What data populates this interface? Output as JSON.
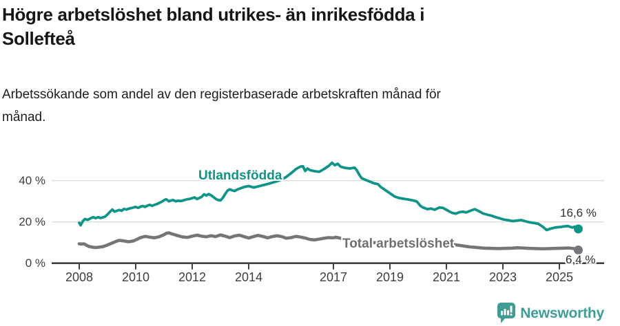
{
  "header": {
    "title_lines": [
      "Högre arbetslöshet bland utrikes- än inrikesfödda i",
      "Sollefteå"
    ],
    "subtitle_lines": [
      "Arbetssökande som andel av den registerbaserade arbetskraften månad för",
      "månad."
    ]
  },
  "chart_data": {
    "type": "line",
    "title": "Högre arbetslöshet bland utrikes- än inrikesfödda i Sollefteå",
    "subtitle": "Arbetssökande som andel av den registerbaserade arbetskraften månad för månad.",
    "unit": "%",
    "grid": "horizontal-only",
    "x_axis": {
      "ticks": [
        {
          "year": 2008,
          "label": "2008"
        },
        {
          "year": 2010,
          "label": "2010"
        },
        {
          "year": 2012,
          "label": "2012"
        },
        {
          "year": 2014,
          "label": "2014"
        },
        {
          "year": 2017,
          "label": "2017"
        },
        {
          "year": 2019,
          "label": "2019"
        },
        {
          "year": 2021,
          "label": "2021"
        },
        {
          "year": 2023,
          "label": "2023"
        },
        {
          "year": 2025,
          "label": "2025"
        }
      ],
      "range": [
        2007.0,
        2026.1
      ]
    },
    "y_axis": {
      "ticks": [
        {
          "value": 0,
          "label": "0 %"
        },
        {
          "value": 20,
          "label": "20 %"
        },
        {
          "value": 40,
          "label": "40 %"
        }
      ],
      "range": [
        0,
        52
      ]
    },
    "series": [
      {
        "name": "Utlandsfödda",
        "color": "#0E9488",
        "end_label": "16,6 %",
        "end_value": 16.6,
        "points": [
          [
            2008.0,
            19.6
          ],
          [
            2008.05,
            18.4
          ],
          [
            2008.13,
            20.4
          ],
          [
            2008.2,
            21.4
          ],
          [
            2008.3,
            21.0
          ],
          [
            2008.42,
            21.9
          ],
          [
            2008.5,
            22.3
          ],
          [
            2008.58,
            21.8
          ],
          [
            2008.67,
            22.3
          ],
          [
            2008.75,
            21.9
          ],
          [
            2008.83,
            22.2
          ],
          [
            2008.92,
            22.6
          ],
          [
            2009.0,
            23.6
          ],
          [
            2009.08,
            24.8
          ],
          [
            2009.17,
            26.0
          ],
          [
            2009.25,
            25.0
          ],
          [
            2009.33,
            25.4
          ],
          [
            2009.42,
            25.8
          ],
          [
            2009.5,
            25.4
          ],
          [
            2009.58,
            26.3
          ],
          [
            2009.67,
            26.0
          ],
          [
            2009.75,
            26.4
          ],
          [
            2009.83,
            26.7
          ],
          [
            2009.92,
            27.0
          ],
          [
            2010.0,
            27.3
          ],
          [
            2010.08,
            26.8
          ],
          [
            2010.17,
            27.4
          ],
          [
            2010.25,
            27.7
          ],
          [
            2010.33,
            27.3
          ],
          [
            2010.42,
            27.9
          ],
          [
            2010.5,
            28.3
          ],
          [
            2010.58,
            27.8
          ],
          [
            2010.67,
            28.3
          ],
          [
            2010.75,
            28.7
          ],
          [
            2010.83,
            29.2
          ],
          [
            2010.92,
            29.8
          ],
          [
            2011.0,
            30.5
          ],
          [
            2011.08,
            31.0
          ],
          [
            2011.17,
            30.0
          ],
          [
            2011.25,
            30.4
          ],
          [
            2011.33,
            30.6
          ],
          [
            2011.42,
            30.0
          ],
          [
            2011.5,
            30.3
          ],
          [
            2011.58,
            30.1
          ],
          [
            2011.67,
            30.4
          ],
          [
            2011.75,
            30.7
          ],
          [
            2011.83,
            31.0
          ],
          [
            2011.92,
            31.2
          ],
          [
            2012.0,
            31.5
          ],
          [
            2012.08,
            31.9
          ],
          [
            2012.17,
            31.1
          ],
          [
            2012.25,
            31.6
          ],
          [
            2012.33,
            32.1
          ],
          [
            2012.42,
            33.4
          ],
          [
            2012.5,
            32.8
          ],
          [
            2012.58,
            33.5
          ],
          [
            2012.67,
            32.9
          ],
          [
            2012.75,
            32.1
          ],
          [
            2012.83,
            31.2
          ],
          [
            2012.92,
            30.6
          ],
          [
            2013.0,
            30.4
          ],
          [
            2013.08,
            31.6
          ],
          [
            2013.17,
            33.6
          ],
          [
            2013.25,
            35.2
          ],
          [
            2013.33,
            35.8
          ],
          [
            2013.42,
            35.3
          ],
          [
            2013.5,
            35.0
          ],
          [
            2013.58,
            35.6
          ],
          [
            2013.67,
            36.1
          ],
          [
            2013.75,
            36.5
          ],
          [
            2013.83,
            36.9
          ],
          [
            2013.92,
            37.2
          ],
          [
            2014.0,
            37.4
          ],
          [
            2014.17,
            36.7
          ],
          [
            2014.33,
            37.2
          ],
          [
            2014.5,
            37.8
          ],
          [
            2014.67,
            38.4
          ],
          [
            2014.83,
            39.0
          ],
          [
            2015.0,
            39.7
          ],
          [
            2015.17,
            40.6
          ],
          [
            2015.33,
            41.8
          ],
          [
            2015.5,
            43.6
          ],
          [
            2015.67,
            45.6
          ],
          [
            2015.83,
            46.8
          ],
          [
            2015.92,
            47.0
          ],
          [
            2016.0,
            44.7
          ],
          [
            2016.08,
            45.9
          ],
          [
            2016.17,
            45.1
          ],
          [
            2016.33,
            44.6
          ],
          [
            2016.5,
            44.3
          ],
          [
            2016.67,
            45.7
          ],
          [
            2016.83,
            47.1
          ],
          [
            2016.95,
            48.7
          ],
          [
            2017.05,
            47.5
          ],
          [
            2017.15,
            48.2
          ],
          [
            2017.25,
            46.8
          ],
          [
            2017.42,
            46.2
          ],
          [
            2017.58,
            45.9
          ],
          [
            2017.75,
            46.3
          ],
          [
            2017.83,
            45.0
          ],
          [
            2017.92,
            42.8
          ],
          [
            2018.0,
            41.2
          ],
          [
            2018.17,
            40.2
          ],
          [
            2018.33,
            39.3
          ],
          [
            2018.42,
            38.8
          ],
          [
            2018.58,
            38.3
          ],
          [
            2018.67,
            37.0
          ],
          [
            2018.83,
            35.5
          ],
          [
            2019.0,
            33.9
          ],
          [
            2019.17,
            32.3
          ],
          [
            2019.33,
            31.6
          ],
          [
            2019.5,
            31.2
          ],
          [
            2019.67,
            30.8
          ],
          [
            2019.83,
            30.4
          ],
          [
            2019.95,
            29.9
          ],
          [
            2020.08,
            27.8
          ],
          [
            2020.17,
            27.0
          ],
          [
            2020.33,
            26.2
          ],
          [
            2020.45,
            26.5
          ],
          [
            2020.58,
            25.9
          ],
          [
            2020.75,
            27.0
          ],
          [
            2020.88,
            26.8
          ],
          [
            2021.05,
            25.5
          ],
          [
            2021.2,
            24.4
          ],
          [
            2021.33,
            24.0
          ],
          [
            2021.45,
            24.7
          ],
          [
            2021.58,
            25.0
          ],
          [
            2021.7,
            24.6
          ],
          [
            2021.85,
            25.4
          ],
          [
            2022.0,
            26.2
          ],
          [
            2022.15,
            25.2
          ],
          [
            2022.3,
            24.1
          ],
          [
            2022.45,
            23.5
          ],
          [
            2022.6,
            23.0
          ],
          [
            2022.75,
            22.3
          ],
          [
            2022.9,
            21.7
          ],
          [
            2023.05,
            21.1
          ],
          [
            2023.2,
            20.8
          ],
          [
            2023.35,
            20.4
          ],
          [
            2023.5,
            20.7
          ],
          [
            2023.65,
            20.9
          ],
          [
            2023.8,
            20.3
          ],
          [
            2023.95,
            19.8
          ],
          [
            2024.1,
            19.5
          ],
          [
            2024.25,
            19.1
          ],
          [
            2024.4,
            17.8
          ],
          [
            2024.55,
            16.1
          ],
          [
            2024.7,
            16.8
          ],
          [
            2024.85,
            17.3
          ],
          [
            2025.0,
            17.5
          ],
          [
            2025.15,
            17.8
          ],
          [
            2025.3,
            18.0
          ],
          [
            2025.45,
            17.3
          ],
          [
            2025.55,
            17.7
          ],
          [
            2025.67,
            16.6
          ]
        ]
      },
      {
        "name": "Total arbetslöshet",
        "color": "#75757A",
        "end_label": "6,4 %",
        "end_value": 6.4,
        "points": [
          [
            2008.0,
            9.4
          ],
          [
            2008.08,
            9.3
          ],
          [
            2008.17,
            9.4
          ],
          [
            2008.25,
            8.8
          ],
          [
            2008.33,
            8.2
          ],
          [
            2008.42,
            7.9
          ],
          [
            2008.5,
            7.7
          ],
          [
            2008.58,
            7.6
          ],
          [
            2008.67,
            7.7
          ],
          [
            2008.83,
            8.0
          ],
          [
            2009.0,
            8.8
          ],
          [
            2009.17,
            9.8
          ],
          [
            2009.33,
            10.7
          ],
          [
            2009.42,
            11.1
          ],
          [
            2009.58,
            10.8
          ],
          [
            2009.75,
            10.4
          ],
          [
            2009.92,
            10.8
          ],
          [
            2010.0,
            11.3
          ],
          [
            2010.17,
            12.4
          ],
          [
            2010.33,
            13.0
          ],
          [
            2010.5,
            12.6
          ],
          [
            2010.67,
            12.3
          ],
          [
            2010.83,
            12.8
          ],
          [
            2011.0,
            13.8
          ],
          [
            2011.08,
            14.5
          ],
          [
            2011.17,
            14.7
          ],
          [
            2011.33,
            14.0
          ],
          [
            2011.5,
            13.3
          ],
          [
            2011.67,
            12.7
          ],
          [
            2011.83,
            12.5
          ],
          [
            2012.0,
            13.1
          ],
          [
            2012.17,
            13.6
          ],
          [
            2012.33,
            13.1
          ],
          [
            2012.5,
            12.8
          ],
          [
            2012.67,
            13.3
          ],
          [
            2012.83,
            12.9
          ],
          [
            2013.0,
            13.7
          ],
          [
            2013.17,
            13.1
          ],
          [
            2013.33,
            12.4
          ],
          [
            2013.5,
            13.2
          ],
          [
            2013.67,
            13.6
          ],
          [
            2013.83,
            12.9
          ],
          [
            2014.0,
            12.2
          ],
          [
            2014.17,
            12.9
          ],
          [
            2014.33,
            13.5
          ],
          [
            2014.5,
            13.0
          ],
          [
            2014.67,
            12.3
          ],
          [
            2014.83,
            12.9
          ],
          [
            2015.0,
            13.3
          ],
          [
            2015.17,
            12.9
          ],
          [
            2015.33,
            12.1
          ],
          [
            2015.5,
            12.4
          ],
          [
            2015.67,
            13.0
          ],
          [
            2015.83,
            12.7
          ],
          [
            2016.0,
            12.2
          ],
          [
            2016.17,
            11.5
          ],
          [
            2016.33,
            11.3
          ],
          [
            2016.5,
            11.7
          ],
          [
            2016.67,
            12.1
          ],
          [
            2016.83,
            12.4
          ],
          [
            2017.0,
            12.3
          ],
          [
            2017.08,
            12.6
          ],
          [
            2017.25,
            12.1
          ],
          [
            2017.42,
            11.5
          ],
          [
            2017.58,
            11.1
          ],
          [
            2017.75,
            10.8
          ],
          [
            2017.92,
            10.6
          ],
          [
            2018.17,
            10.3
          ],
          [
            2018.42,
            10.0
          ],
          [
            2018.67,
            9.8
          ],
          [
            2018.92,
            9.6
          ],
          [
            2019.17,
            9.4
          ],
          [
            2019.42,
            9.2
          ],
          [
            2019.67,
            9.1
          ],
          [
            2019.92,
            9.3
          ],
          [
            2020.17,
            9.8
          ],
          [
            2020.42,
            10.3
          ],
          [
            2020.58,
            10.4
          ],
          [
            2020.83,
            10.1
          ],
          [
            2021.08,
            9.5
          ],
          [
            2021.33,
            8.9
          ],
          [
            2021.58,
            8.4
          ],
          [
            2021.83,
            7.9
          ],
          [
            2022.0,
            7.7
          ],
          [
            2022.17,
            7.5
          ],
          [
            2022.33,
            7.3
          ],
          [
            2022.58,
            7.2
          ],
          [
            2022.83,
            7.1
          ],
          [
            2023.08,
            7.2
          ],
          [
            2023.33,
            7.3
          ],
          [
            2023.5,
            7.5
          ],
          [
            2023.67,
            7.4
          ],
          [
            2023.92,
            7.2
          ],
          [
            2024.17,
            7.1
          ],
          [
            2024.42,
            7.0
          ],
          [
            2024.67,
            7.1
          ],
          [
            2024.92,
            7.2
          ],
          [
            2025.17,
            7.3
          ],
          [
            2025.33,
            7.4
          ],
          [
            2025.5,
            7.1
          ],
          [
            2025.67,
            6.4
          ]
        ]
      }
    ]
  },
  "branding": {
    "logo_text": "Newsworthy",
    "logo_color": "#3F9D95"
  }
}
